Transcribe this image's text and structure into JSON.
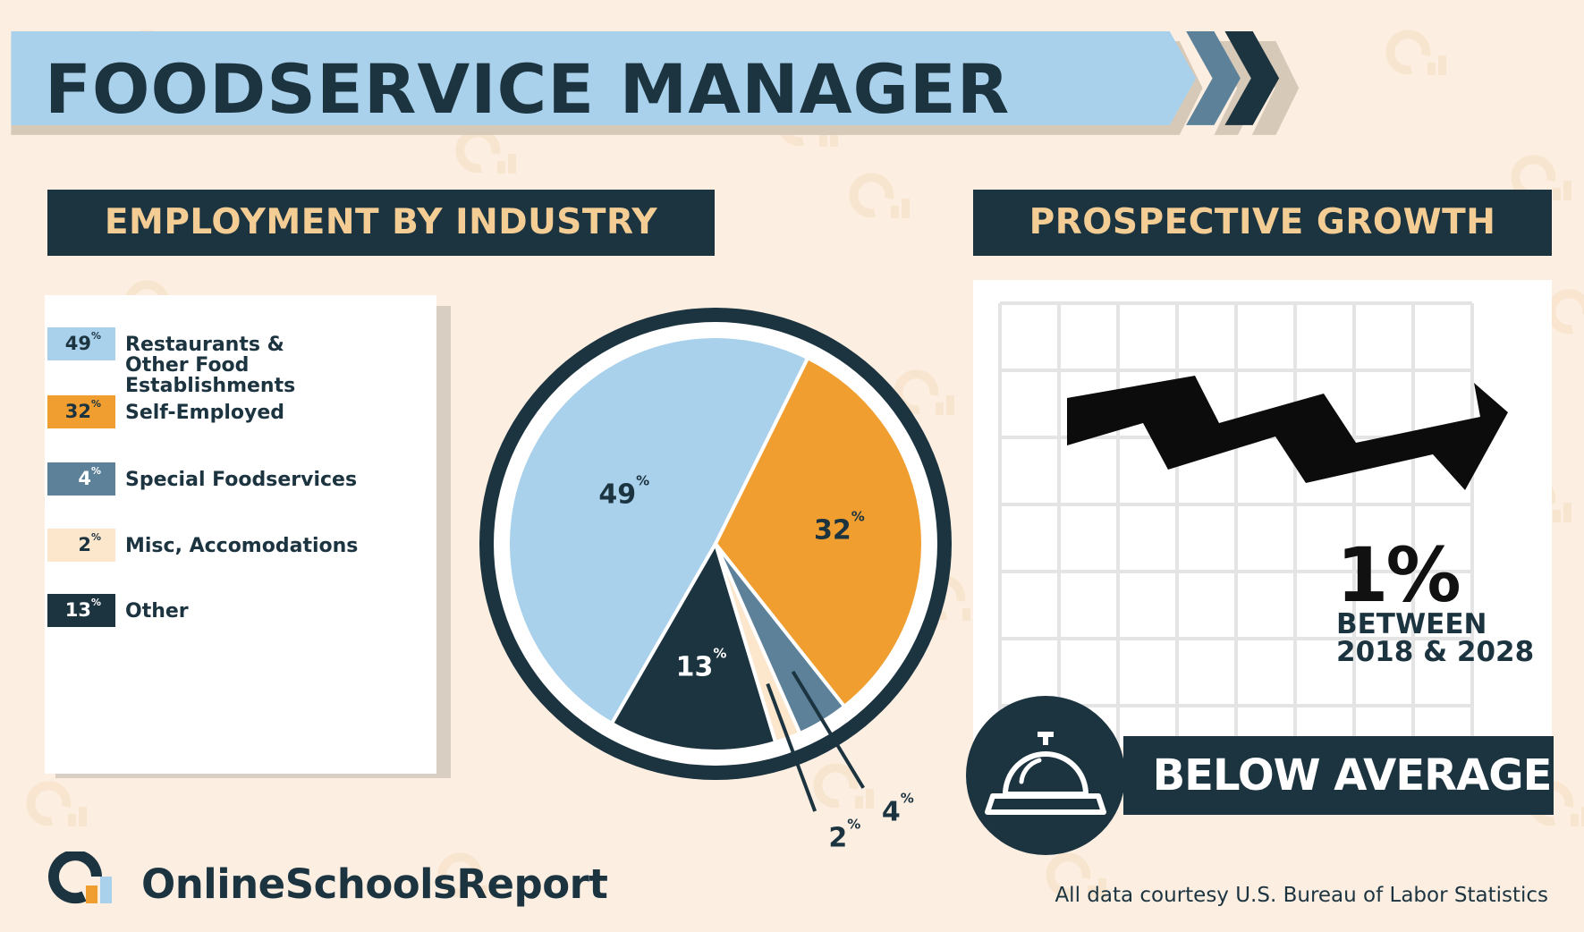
{
  "title": "FOODSERVICE MANAGER",
  "sections": {
    "employment_heading": "EMPLOYMENT BY INDUSTRY",
    "growth_heading": "PROSPECTIVE GROWTH"
  },
  "colors": {
    "navy": "#1c3340",
    "light_blue": "#a9d1ec",
    "orange": "#f09e30",
    "slate": "#5c8199",
    "cream": "#fce6cc",
    "background": "#fcefe2",
    "heading_text": "#f4cd95"
  },
  "chart_data": {
    "type": "pie",
    "title": "EMPLOYMENT BY INDUSTRY",
    "slices": [
      {
        "label": "Restaurants & Other Food Establishments",
        "value": 49,
        "display": "49",
        "color": "#a9d1ec",
        "text_color": "#1c3340"
      },
      {
        "label": "Self-Employed",
        "value": 32,
        "display": "32",
        "color": "#f09e30",
        "text_color": "#1c3340"
      },
      {
        "label": "Special Foodservices",
        "value": 4,
        "display": "4",
        "color": "#5c8199",
        "text_color": "#ffffff"
      },
      {
        "label": "Misc, Accomodations",
        "value": 2,
        "display": "2",
        "color": "#fce6cc",
        "text_color": "#1c3340"
      },
      {
        "label": "Other",
        "value": 13,
        "display": "13",
        "color": "#1c3340",
        "text_color": "#ffffff"
      }
    ],
    "unit": "%"
  },
  "growth": {
    "value": "1%",
    "line1": "BETWEEN",
    "line2": "2018 & 2028",
    "rating": "BELOW AVERAGE",
    "icon": "service-bell-icon",
    "trend_icon": "zigzag-arrow-icon"
  },
  "footer": {
    "brand": "OnlineSchoolsReport",
    "logo_icon": "online-schools-report-logo-icon",
    "credit": "All data courtesy U.S. Bureau of Labor Statistics"
  }
}
